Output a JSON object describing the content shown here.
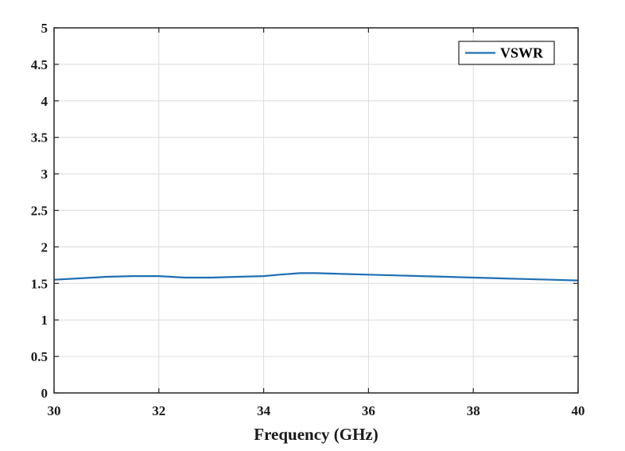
{
  "chart_data": {
    "type": "line",
    "title": "",
    "xlabel": "Frequency (GHz)",
    "ylabel": "",
    "xlim": [
      30,
      40
    ],
    "ylim": [
      0,
      5
    ],
    "xticks": [
      30,
      32,
      34,
      36,
      38,
      40
    ],
    "yticks": [
      0,
      0.5,
      1,
      1.5,
      2,
      2.5,
      3,
      3.5,
      4,
      4.5,
      5
    ],
    "xtick_labels": [
      "30",
      "32",
      "34",
      "36",
      "38",
      "40"
    ],
    "ytick_labels": [
      "0",
      "0.5",
      "1",
      "1.5",
      "2",
      "2.5",
      "3",
      "3.5",
      "4",
      "4.5",
      "5"
    ],
    "grid": true,
    "legend": {
      "position": "top-right"
    },
    "series": [
      {
        "name": "VSWR",
        "color": "#1f6fb4",
        "x": [
          30,
          30.5,
          31,
          31.5,
          32,
          32.5,
          33,
          33.5,
          34,
          34.3,
          34.7,
          35,
          35.5,
          36,
          36.5,
          37,
          37.5,
          38,
          38.5,
          39,
          39.5,
          40
        ],
        "y": [
          1.55,
          1.57,
          1.59,
          1.6,
          1.6,
          1.58,
          1.58,
          1.59,
          1.6,
          1.62,
          1.64,
          1.64,
          1.63,
          1.62,
          1.61,
          1.6,
          1.59,
          1.58,
          1.57,
          1.56,
          1.55,
          1.54
        ]
      }
    ]
  }
}
